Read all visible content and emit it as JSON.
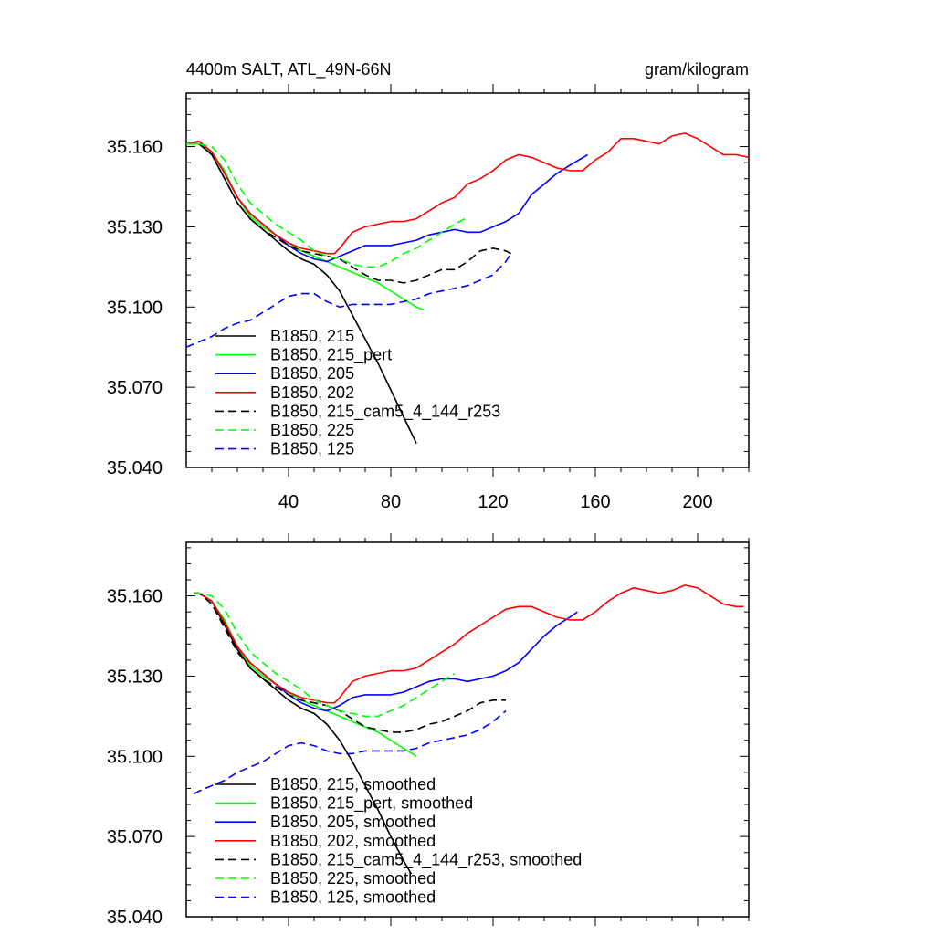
{
  "chart_data": [
    {
      "type": "line",
      "title": "4400m SALT, ATL_49N-66N",
      "units": "gram/kilogram",
      "xlim": [
        0,
        220
      ],
      "ylim": [
        35.04,
        35.18
      ],
      "xticks": [
        40,
        80,
        120,
        160,
        200
      ],
      "xtick_labels": [
        "40",
        "80",
        "120",
        "160",
        "200"
      ],
      "yticks": [
        35.04,
        35.07,
        35.1,
        35.13,
        35.16
      ],
      "ytick_labels": [
        "35.040",
        "35.070",
        "35.100",
        "35.130",
        "35.160"
      ],
      "series": [
        {
          "name": "B1850, 215",
          "color": "#000000",
          "dash": "solid",
          "x": [
            0,
            5,
            10,
            15,
            20,
            25,
            30,
            35,
            40,
            45,
            50,
            55,
            60,
            65,
            70,
            75,
            80,
            85,
            90
          ],
          "y": [
            35.161,
            35.161,
            35.157,
            35.148,
            35.139,
            35.133,
            35.129,
            35.125,
            35.121,
            35.118,
            35.116,
            35.112,
            35.106,
            35.097,
            35.088,
            35.079,
            35.069,
            35.059,
            35.049
          ]
        },
        {
          "name": "B1850, 215_pert",
          "color": "#00ff00",
          "dash": "solid",
          "x": [
            0,
            5,
            10,
            15,
            20,
            25,
            30,
            35,
            40,
            45,
            50,
            55,
            60,
            65,
            70,
            75,
            80,
            85,
            90,
            93
          ],
          "y": [
            35.161,
            35.161,
            35.158,
            35.151,
            35.141,
            35.134,
            35.13,
            35.127,
            35.124,
            35.121,
            35.119,
            35.117,
            35.115,
            35.113,
            35.111,
            35.109,
            35.106,
            35.103,
            35.1,
            35.099
          ]
        },
        {
          "name": "B1850, 205",
          "color": "#0000ff",
          "dash": "solid",
          "x": [
            0,
            5,
            10,
            15,
            20,
            25,
            30,
            35,
            40,
            45,
            50,
            55,
            60,
            65,
            70,
            75,
            80,
            85,
            90,
            95,
            100,
            105,
            110,
            115,
            120,
            125,
            130,
            135,
            140,
            145,
            150,
            157
          ],
          "y": [
            35.161,
            35.162,
            35.158,
            35.15,
            35.141,
            35.135,
            35.131,
            35.127,
            35.123,
            35.12,
            35.118,
            35.117,
            35.119,
            35.121,
            35.123,
            35.123,
            35.123,
            35.124,
            35.125,
            35.127,
            35.128,
            35.129,
            35.128,
            35.128,
            35.13,
            35.132,
            35.135,
            35.142,
            35.146,
            35.15,
            35.153,
            35.157
          ]
        },
        {
          "name": "B1850, 202",
          "color": "#ff0000",
          "dash": "solid",
          "x": [
            0,
            5,
            10,
            15,
            20,
            25,
            30,
            35,
            40,
            45,
            50,
            55,
            58,
            60,
            65,
            70,
            75,
            80,
            85,
            90,
            95,
            100,
            105,
            110,
            115,
            120,
            125,
            130,
            135,
            140,
            145,
            150,
            155,
            160,
            165,
            170,
            175,
            180,
            185,
            190,
            195,
            200,
            205,
            210,
            215,
            220
          ],
          "y": [
            35.161,
            35.162,
            35.158,
            35.15,
            35.141,
            35.135,
            35.131,
            35.127,
            35.124,
            35.122,
            35.121,
            35.12,
            35.12,
            35.122,
            35.128,
            35.13,
            35.131,
            35.132,
            35.132,
            35.133,
            35.136,
            35.139,
            35.141,
            35.146,
            35.148,
            35.151,
            35.155,
            35.157,
            35.156,
            35.154,
            35.152,
            35.151,
            35.151,
            35.155,
            35.158,
            35.163,
            35.163,
            35.162,
            35.161,
            35.164,
            35.165,
            35.163,
            35.16,
            35.157,
            35.157,
            35.156
          ]
        },
        {
          "name": "B1850, 215_cam5_4_144_r253",
          "color": "#000000",
          "dash": "dashed",
          "x": [
            0,
            5,
            10,
            15,
            20,
            25,
            30,
            35,
            40,
            45,
            50,
            55,
            60,
            65,
            70,
            75,
            80,
            85,
            90,
            95,
            100,
            105,
            110,
            115,
            120,
            125,
            127
          ],
          "y": [
            35.161,
            35.161,
            35.157,
            35.148,
            35.139,
            35.133,
            35.129,
            35.126,
            35.123,
            35.121,
            35.12,
            35.119,
            35.118,
            35.115,
            35.112,
            35.11,
            35.11,
            35.109,
            35.11,
            35.112,
            35.114,
            35.114,
            35.117,
            35.121,
            35.122,
            35.121,
            35.12
          ]
        },
        {
          "name": "B1850, 225",
          "color": "#00ff00",
          "dash": "dashed",
          "x": [
            0,
            5,
            10,
            15,
            20,
            25,
            30,
            35,
            40,
            45,
            50,
            55,
            60,
            65,
            70,
            75,
            80,
            85,
            90,
            95,
            100,
            105,
            109
          ],
          "y": [
            35.161,
            35.161,
            35.16,
            35.155,
            35.146,
            35.139,
            35.135,
            35.131,
            35.128,
            35.125,
            35.121,
            35.119,
            35.118,
            35.116,
            35.115,
            35.115,
            35.117,
            35.12,
            35.122,
            35.125,
            35.128,
            35.131,
            35.133
          ]
        },
        {
          "name": "B1850, 125",
          "color": "#0000ff",
          "dash": "dashed",
          "x": [
            0,
            5,
            10,
            15,
            20,
            25,
            30,
            35,
            40,
            45,
            50,
            55,
            60,
            65,
            70,
            75,
            80,
            85,
            90,
            95,
            100,
            105,
            110,
            115,
            120,
            125,
            127
          ],
          "y": [
            35.085,
            35.087,
            35.089,
            35.092,
            35.094,
            35.095,
            35.098,
            35.101,
            35.104,
            35.105,
            35.105,
            35.102,
            35.1,
            35.101,
            35.101,
            35.101,
            35.101,
            35.102,
            35.103,
            35.105,
            35.106,
            35.107,
            35.108,
            35.11,
            35.112,
            35.117,
            35.12
          ]
        }
      ]
    },
    {
      "type": "line",
      "xlim": [
        0,
        220
      ],
      "ylim": [
        35.04,
        35.18
      ],
      "xticks": [
        40,
        80,
        120,
        160,
        200
      ],
      "yticks": [
        35.04,
        35.07,
        35.1,
        35.13,
        35.16
      ],
      "ytick_labels": [
        "35.040",
        "35.070",
        "35.100",
        "35.130",
        "35.160"
      ],
      "series": [
        {
          "name": "B1850, 215, smoothed",
          "color": "#000000",
          "dash": "solid",
          "x": [
            3,
            5,
            10,
            15,
            20,
            25,
            30,
            35,
            40,
            45,
            50,
            55,
            60,
            65,
            70,
            75,
            80,
            85,
            88
          ],
          "y": [
            35.161,
            35.161,
            35.158,
            35.149,
            35.14,
            35.133,
            35.129,
            35.125,
            35.121,
            35.118,
            35.116,
            35.112,
            35.106,
            35.098,
            35.089,
            35.08,
            35.07,
            35.061,
            35.056
          ]
        },
        {
          "name": "B1850, 215_pert, smoothed",
          "color": "#00ff00",
          "dash": "solid",
          "x": [
            3,
            5,
            10,
            15,
            20,
            25,
            30,
            35,
            40,
            45,
            50,
            55,
            60,
            65,
            70,
            75,
            80,
            85,
            90
          ],
          "y": [
            35.161,
            35.161,
            35.158,
            35.151,
            35.141,
            35.134,
            35.13,
            35.127,
            35.124,
            35.121,
            35.119,
            35.117,
            35.115,
            35.113,
            35.111,
            35.109,
            35.106,
            35.103,
            35.1
          ]
        },
        {
          "name": "B1850, 205, smoothed",
          "color": "#0000ff",
          "dash": "solid",
          "x": [
            3,
            5,
            10,
            15,
            20,
            25,
            30,
            35,
            40,
            45,
            50,
            55,
            60,
            65,
            70,
            75,
            80,
            85,
            90,
            95,
            100,
            105,
            110,
            115,
            120,
            125,
            130,
            135,
            140,
            145,
            150,
            153
          ],
          "y": [
            35.161,
            35.161,
            35.158,
            35.15,
            35.141,
            35.135,
            35.131,
            35.127,
            35.123,
            35.12,
            35.118,
            35.117,
            35.119,
            35.122,
            35.123,
            35.123,
            35.123,
            35.124,
            35.126,
            35.128,
            35.129,
            35.129,
            35.128,
            35.129,
            35.13,
            35.132,
            35.135,
            35.14,
            35.145,
            35.149,
            35.152,
            35.154
          ]
        },
        {
          "name": "B1850, 202, smoothed",
          "color": "#ff0000",
          "dash": "solid",
          "x": [
            3,
            5,
            10,
            15,
            20,
            25,
            30,
            35,
            40,
            45,
            50,
            55,
            58,
            60,
            65,
            70,
            75,
            80,
            85,
            90,
            95,
            100,
            105,
            110,
            115,
            120,
            125,
            130,
            135,
            140,
            145,
            150,
            155,
            160,
            165,
            170,
            175,
            180,
            185,
            190,
            195,
            200,
            205,
            210,
            215,
            218
          ],
          "y": [
            35.161,
            35.161,
            35.158,
            35.15,
            35.141,
            35.135,
            35.131,
            35.127,
            35.124,
            35.122,
            35.121,
            35.12,
            35.12,
            35.122,
            35.128,
            35.13,
            35.131,
            35.132,
            35.132,
            35.133,
            35.136,
            35.139,
            35.142,
            35.146,
            35.149,
            35.152,
            35.155,
            35.156,
            35.156,
            35.154,
            35.152,
            35.151,
            35.151,
            35.154,
            35.158,
            35.161,
            35.163,
            35.162,
            35.161,
            35.162,
            35.164,
            35.163,
            35.16,
            35.157,
            35.156,
            35.156
          ]
        },
        {
          "name": "B1850, 215_cam5_4_144_r253, smoothed",
          "color": "#000000",
          "dash": "dashed",
          "x": [
            3,
            5,
            10,
            15,
            20,
            25,
            30,
            35,
            40,
            45,
            50,
            55,
            60,
            65,
            70,
            75,
            80,
            85,
            90,
            95,
            100,
            105,
            110,
            115,
            120,
            125
          ],
          "y": [
            35.161,
            35.161,
            35.157,
            35.148,
            35.139,
            35.133,
            35.129,
            35.126,
            35.123,
            35.121,
            35.12,
            35.119,
            35.117,
            35.114,
            35.111,
            35.11,
            35.109,
            35.109,
            35.11,
            35.112,
            35.113,
            35.115,
            35.117,
            35.12,
            35.121,
            35.121
          ]
        },
        {
          "name": "B1850, 225, smoothed",
          "color": "#00ff00",
          "dash": "dashed",
          "x": [
            3,
            5,
            10,
            15,
            20,
            25,
            30,
            35,
            40,
            45,
            50,
            55,
            60,
            65,
            70,
            75,
            80,
            85,
            90,
            95,
            100,
            105
          ],
          "y": [
            35.161,
            35.161,
            35.16,
            35.155,
            35.146,
            35.139,
            35.135,
            35.131,
            35.128,
            35.125,
            35.121,
            35.119,
            35.117,
            35.116,
            35.115,
            35.115,
            35.117,
            35.119,
            35.122,
            35.125,
            35.128,
            35.131
          ]
        },
        {
          "name": "B1850, 125, smoothed",
          "color": "#0000ff",
          "dash": "dashed",
          "x": [
            3,
            5,
            10,
            15,
            20,
            25,
            30,
            35,
            40,
            45,
            50,
            55,
            60,
            65,
            70,
            75,
            80,
            85,
            90,
            95,
            100,
            105,
            110,
            115,
            120,
            125
          ],
          "y": [
            35.086,
            35.087,
            35.089,
            35.091,
            35.094,
            35.096,
            35.098,
            35.101,
            35.104,
            35.105,
            35.104,
            35.102,
            35.101,
            35.101,
            35.102,
            35.102,
            35.102,
            35.102,
            35.103,
            35.105,
            35.106,
            35.107,
            35.108,
            35.11,
            35.113,
            35.117
          ]
        }
      ]
    }
  ]
}
